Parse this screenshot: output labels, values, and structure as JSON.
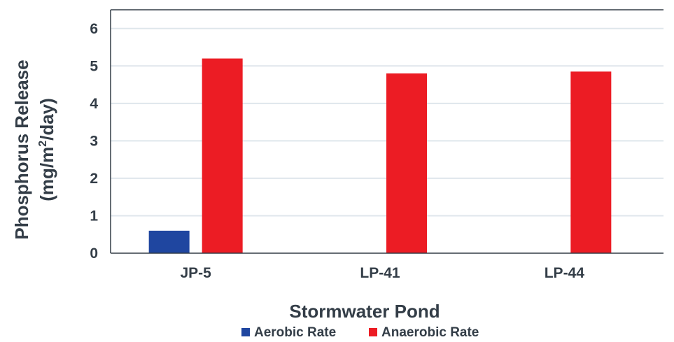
{
  "chart_data": {
    "type": "bar",
    "title": "",
    "xlabel": "Stormwater Pond",
    "ylabel_line1": "Phosphorus Release",
    "ylabel_line2_prefix": "(mg/m",
    "ylabel_line2_sup": "2",
    "ylabel_line2_suffix": "/day)",
    "categories": [
      "JP-5",
      "LP-41",
      "LP-44"
    ],
    "series": [
      {
        "name": "Aerobic Rate",
        "color": "#1f46a0",
        "values": [
          0.6,
          0,
          0
        ]
      },
      {
        "name": "Anaerobic Rate",
        "color": "#ec1c24",
        "values": [
          5.2,
          4.8,
          4.85
        ]
      }
    ],
    "ylim": [
      0,
      6.5
    ],
    "yticks": [
      "0",
      "1",
      "2",
      "3",
      "4",
      "5",
      "6"
    ],
    "grid": true,
    "legend": "bottom"
  }
}
